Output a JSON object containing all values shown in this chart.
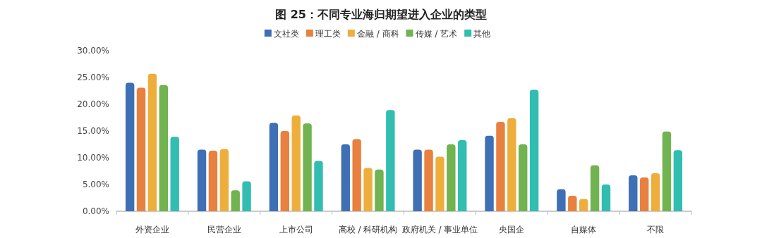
{
  "chart_data": {
    "type": "bar",
    "title": "图 25：不同专业海归期望进入企业的类型",
    "categories": [
      "外资企业",
      "民营企业",
      "上市公司",
      "高校 / 科研机构",
      "政府机关 / 事业单位",
      "央国企",
      "自媒体",
      "不限"
    ],
    "series": [
      {
        "name": "文社类",
        "color": "#3f6fb5",
        "values": [
          24.0,
          11.5,
          16.5,
          12.5,
          11.5,
          14.1,
          4.1,
          6.7
        ]
      },
      {
        "name": "理工类",
        "color": "#e8803f",
        "values": [
          23.1,
          11.3,
          15.0,
          13.5,
          11.5,
          16.7,
          2.9,
          6.3
        ]
      },
      {
        "name": "金融 / 商科",
        "color": "#eeae3c",
        "values": [
          25.7,
          11.6,
          17.9,
          8.1,
          10.2,
          17.4,
          2.3,
          7.1
        ]
      },
      {
        "name": "传媒 / 艺术",
        "color": "#70b350",
        "values": [
          23.6,
          3.9,
          16.4,
          7.8,
          12.5,
          12.5,
          8.6,
          14.9
        ]
      },
      {
        "name": "其他",
        "color": "#32bdb1",
        "values": [
          13.9,
          5.6,
          9.4,
          18.9,
          13.3,
          22.7,
          5.0,
          11.4
        ]
      }
    ],
    "ylim": [
      0,
      30
    ],
    "yticks": [
      {
        "value": 0,
        "label": "0.00%"
      },
      {
        "value": 5,
        "label": "5.00%"
      },
      {
        "value": 10,
        "label": "10.00%"
      },
      {
        "value": 15,
        "label": "15.00%"
      },
      {
        "value": 20,
        "label": "20.00%"
      },
      {
        "value": 25,
        "label": "25.00%"
      },
      {
        "value": 30,
        "label": "30.00%"
      }
    ],
    "grid": false,
    "legend": "top"
  }
}
